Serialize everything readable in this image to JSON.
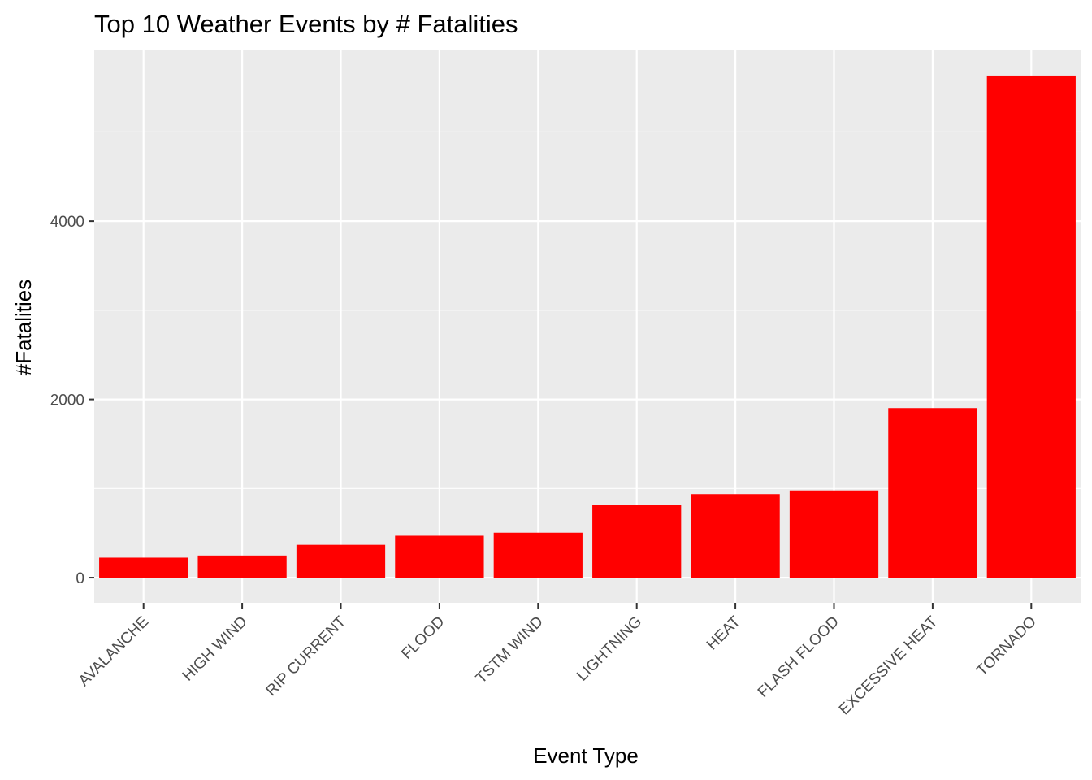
{
  "chart_data": {
    "type": "bar",
    "title": "Top 10 Weather Events by # Fatalities",
    "xlabel": "Event Type",
    "ylabel": "#Fatalities",
    "categories": [
      "AVALANCHE",
      "HIGH WIND",
      "RIP CURRENT",
      "FLOOD",
      "TSTM WIND",
      "LIGHTNING",
      "HEAT",
      "FLASH FLOOD",
      "EXCESSIVE HEAT",
      "TORNADO"
    ],
    "values": [
      224,
      248,
      368,
      470,
      504,
      816,
      937,
      978,
      1903,
      5633
    ],
    "ylim": [
      -282,
      5915
    ],
    "yticks": [
      0,
      2000,
      4000
    ],
    "ytick_labels": [
      "0",
      "2000",
      "4000"
    ],
    "bar_color": "#ff0000",
    "panel_color": "#ebebeb",
    "grid": true,
    "legend": "none"
  }
}
